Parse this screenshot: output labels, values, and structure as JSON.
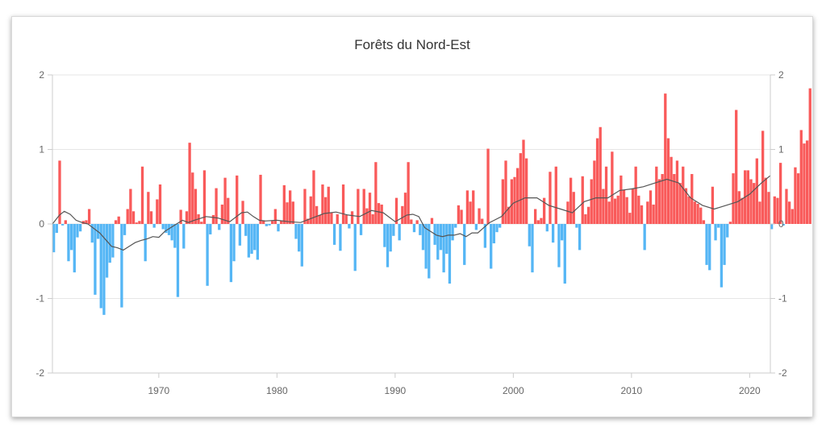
{
  "chart_data": {
    "type": "bar",
    "title": "Forêts du Nord-Est",
    "xlabel": "",
    "ylabel": "",
    "ylim": [
      -2,
      2
    ],
    "xlim": [
      1961,
      2021.75
    ],
    "y_ticks": [
      "2",
      "1",
      "0",
      "-1",
      "-2"
    ],
    "y_tick_values": [
      2,
      1,
      0,
      -1,
      -2
    ],
    "x_ticks": [
      "1970",
      "1980",
      "1990",
      "2000",
      "2010",
      "2020"
    ],
    "x_tick_values": [
      1970,
      1980,
      1990,
      2000,
      2010,
      2020
    ],
    "grid": true,
    "legend": "none",
    "colors": {
      "positive": "#f95a5a",
      "negative": "#55b6f5",
      "trend": "#555555",
      "grid": "#e6e6e6",
      "axis": "#cccccc"
    },
    "series": [
      {
        "kind": "bars",
        "start": 1961.0,
        "step": 0.25,
        "values": [
          -0.38,
          -0.12,
          0.85,
          -0.02,
          0.05,
          -0.5,
          -0.35,
          -0.65,
          -0.18,
          -0.1,
          0.04,
          0.05,
          0.2,
          -0.25,
          -0.95,
          -0.2,
          -1.13,
          -1.22,
          -0.72,
          -0.52,
          -0.45,
          0.05,
          0.1,
          -1.12,
          -0.15,
          0.2,
          0.47,
          0.17,
          0.02,
          0.04,
          0.77,
          -0.5,
          0.43,
          0.17,
          -0.05,
          0.33,
          0.53,
          -0.07,
          -0.12,
          -0.15,
          -0.22,
          -0.32,
          -0.98,
          0.19,
          -0.33,
          0.17,
          1.09,
          0.69,
          0.47,
          0.13,
          0.03,
          0.72,
          -0.83,
          -0.14,
          0.12,
          0.48,
          -0.08,
          0.26,
          0.62,
          0.35,
          -0.78,
          -0.5,
          0.65,
          -0.29,
          0.31,
          -0.16,
          -0.45,
          -0.4,
          -0.35,
          -0.48,
          0.66,
          0.05,
          -0.03,
          -0.02,
          0.04,
          0.2,
          -0.1,
          0.04,
          0.52,
          0.29,
          0.45,
          0.3,
          -0.2,
          -0.37,
          -0.57,
          0.47,
          0.07,
          0.37,
          0.72,
          0.24,
          0.12,
          0.53,
          0.36,
          0.5,
          0.15,
          -0.28,
          0.13,
          -0.36,
          0.53,
          0.12,
          -0.06,
          0.17,
          -0.63,
          0.47,
          -0.15,
          0.47,
          0.21,
          0.42,
          0.13,
          0.83,
          0.28,
          0.26,
          -0.31,
          -0.58,
          -0.37,
          -0.16,
          0.35,
          -0.22,
          0.24,
          0.42,
          0.83,
          0.06,
          -0.11,
          0.05,
          -0.15,
          -0.35,
          -0.6,
          -0.73,
          0.08,
          -0.28,
          -0.48,
          -0.35,
          -0.65,
          -0.4,
          -0.8,
          -0.22,
          -0.05,
          0.25,
          0.19,
          -0.55,
          0.45,
          0.3,
          0.45,
          -0.08,
          0.21,
          0.07,
          -0.32,
          1.01,
          -0.6,
          -0.26,
          -0.11,
          -0.05,
          0.6,
          0.85,
          0.23,
          0.6,
          0.63,
          0.75,
          0.95,
          1.13,
          0.88,
          -0.3,
          -0.65,
          0.2,
          0.05,
          0.08,
          0.35,
          -0.1,
          0.7,
          -0.25,
          0.77,
          -0.58,
          -0.22,
          -0.8,
          0.3,
          0.62,
          0.43,
          -0.05,
          -0.35,
          0.64,
          0.13,
          0.23,
          0.6,
          0.85,
          1.15,
          1.3,
          0.47,
          0.77,
          0.3,
          0.97,
          0.34,
          0.38,
          0.65,
          0.46,
          0.36,
          0.15,
          0.47,
          0.77,
          0.38,
          0.25,
          -0.35,
          0.3,
          0.45,
          0.26,
          0.77,
          0.6,
          0.67,
          1.75,
          1.15,
          0.9,
          0.67,
          0.85,
          0.55,
          0.77,
          0.48,
          0.37,
          0.67,
          0.3,
          0.27,
          0.22,
          0.05,
          -0.55,
          -0.62,
          0.5,
          -0.22,
          -0.05,
          -0.85,
          -0.55,
          -0.18,
          0.03,
          0.68,
          1.53,
          0.44,
          0.35,
          0.72,
          0.72,
          0.6,
          0.55,
          0.88,
          0.3,
          1.25,
          0.62,
          0.43,
          -0.07,
          0.37,
          0.35,
          0.82,
          -0.02,
          0.47,
          0.3,
          0.2,
          0.76,
          0.68,
          1.26,
          1.08,
          1.12,
          1.82
        ]
      },
      {
        "kind": "line",
        "x": [
          1961.0,
          1961.6,
          1962.0,
          1962.5,
          1963.0,
          1963.5,
          1964.0,
          1965.0,
          1966.0,
          1966.5,
          1967.0,
          1967.5,
          1968.0,
          1968.5,
          1969.0,
          1969.5,
          1970.0,
          1970.5,
          1971.0,
          1972.0,
          1972.5,
          1973.0,
          1974.0,
          1975.0,
          1976.0,
          1977.0,
          1977.5,
          1978.0,
          1978.5,
          1979.0,
          1980.0,
          1981.0,
          1982.0,
          1983.0,
          1984.0,
          1985.0,
          1986.0,
          1987.0,
          1988.0,
          1989.0,
          1990.0,
          1991.0,
          1991.5,
          1992.0,
          1992.5,
          1993.0,
          1993.5,
          1994.0,
          1994.5,
          1995.0,
          1995.5,
          1996.0,
          1996.5,
          1997.0,
          1997.5,
          1998.0,
          1999.0,
          2000.0,
          2001.0,
          2002.0,
          2003.0,
          2004.0,
          2005.0,
          2006.0,
          2007.0,
          2008.0,
          2009.0,
          2010.0,
          2011.0,
          2012.0,
          2013.0,
          2014.0,
          2015.0,
          2016.0,
          2017.0,
          2018.0,
          2019.0,
          2020.0,
          2021.0,
          2021.75
        ],
        "values": [
          0.0,
          0.12,
          0.17,
          0.13,
          0.05,
          0.02,
          0.0,
          -0.12,
          -0.3,
          -0.32,
          -0.35,
          -0.3,
          -0.25,
          -0.22,
          -0.2,
          -0.17,
          -0.18,
          -0.1,
          -0.05,
          0.05,
          0.02,
          0.05,
          0.1,
          0.08,
          0.03,
          0.15,
          0.16,
          0.1,
          0.05,
          0.04,
          0.05,
          0.03,
          0.02,
          0.08,
          0.14,
          0.16,
          0.12,
          0.1,
          0.18,
          0.15,
          0.03,
          0.12,
          0.13,
          0.1,
          -0.05,
          -0.1,
          -0.15,
          -0.17,
          -0.15,
          -0.15,
          -0.13,
          -0.17,
          -0.12,
          -0.12,
          -0.05,
          0.02,
          0.1,
          0.28,
          0.35,
          0.35,
          0.25,
          0.2,
          0.15,
          0.3,
          0.35,
          0.35,
          0.45,
          0.47,
          0.5,
          0.55,
          0.6,
          0.55,
          0.35,
          0.25,
          0.2,
          0.25,
          0.3,
          0.4,
          0.55,
          0.65
        ]
      }
    ]
  }
}
